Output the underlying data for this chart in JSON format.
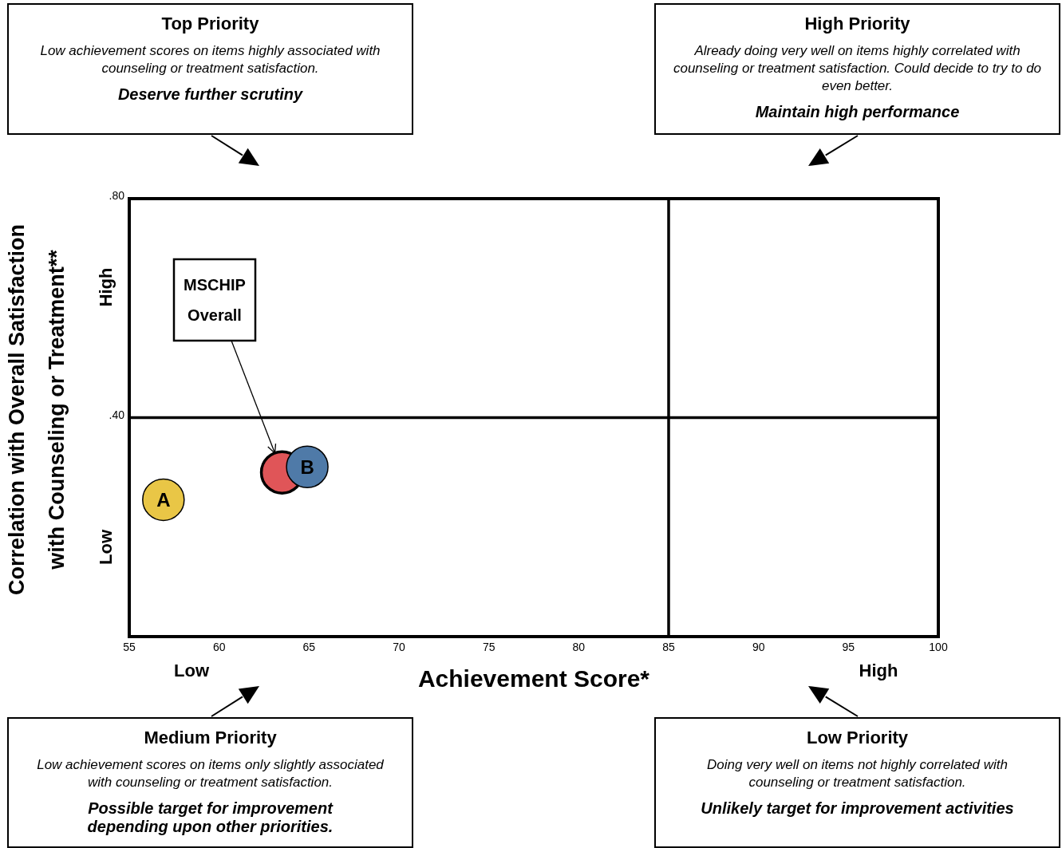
{
  "chart_data": {
    "type": "scatter",
    "xlabel": "Achievement Score*",
    "ylabel": "Correlation with Overall Satisfaction with Counseling or Treatment**",
    "xlim": [
      55,
      100
    ],
    "xticks": [
      55,
      60,
      65,
      70,
      75,
      80,
      85,
      90,
      95,
      100
    ],
    "ylim": [
      0,
      0.8
    ],
    "yticks": [
      {
        "value": 0.4,
        "label": ".40"
      },
      {
        "value": 0.8,
        "label": ".80"
      }
    ],
    "marker": "circle",
    "series": [
      {
        "name": "A",
        "color": "#e9c646",
        "x": [
          56.9
        ],
        "values": [
          0.25
        ]
      },
      {
        "color": "#e05558",
        "x": [
          63.5
        ],
        "values": [
          0.3
        ]
      },
      {
        "name": "B",
        "color": "#4f7aa8",
        "x": [
          64.9
        ],
        "values": [
          0.31
        ]
      }
    ],
    "ref_lines": [
      {
        "axis": "y",
        "value": 0.4,
        "color": "#000000"
      },
      {
        "axis": "x",
        "value": 85,
        "color": "#000000"
      }
    ],
    "annotations": [
      "Top Priority",
      "Low achievement scores on items highly associated with counseling or treatment satisfaction.",
      "Deserve further scrutiny",
      "High Priority",
      "Already doing very well on items highly correlated with counseling or treatment satisfaction. Could decide to try to do even better.",
      "Maintain high performance",
      "Medium Priority",
      "Low achievement scores on items only slightly associated with counseling or treatment satisfaction.",
      "Possible target for improvement depending upon other priorities.",
      "Low Priority",
      "Doing very well on items not highly correlated with counseling or treatment satisfaction.",
      "Unlikely target for improvement activities",
      "Low",
      "High",
      "High",
      "Low",
      {
        "text": "MSCHIP Overall",
        "x": 63.1,
        "y": 0.335
      }
    ]
  }
}
